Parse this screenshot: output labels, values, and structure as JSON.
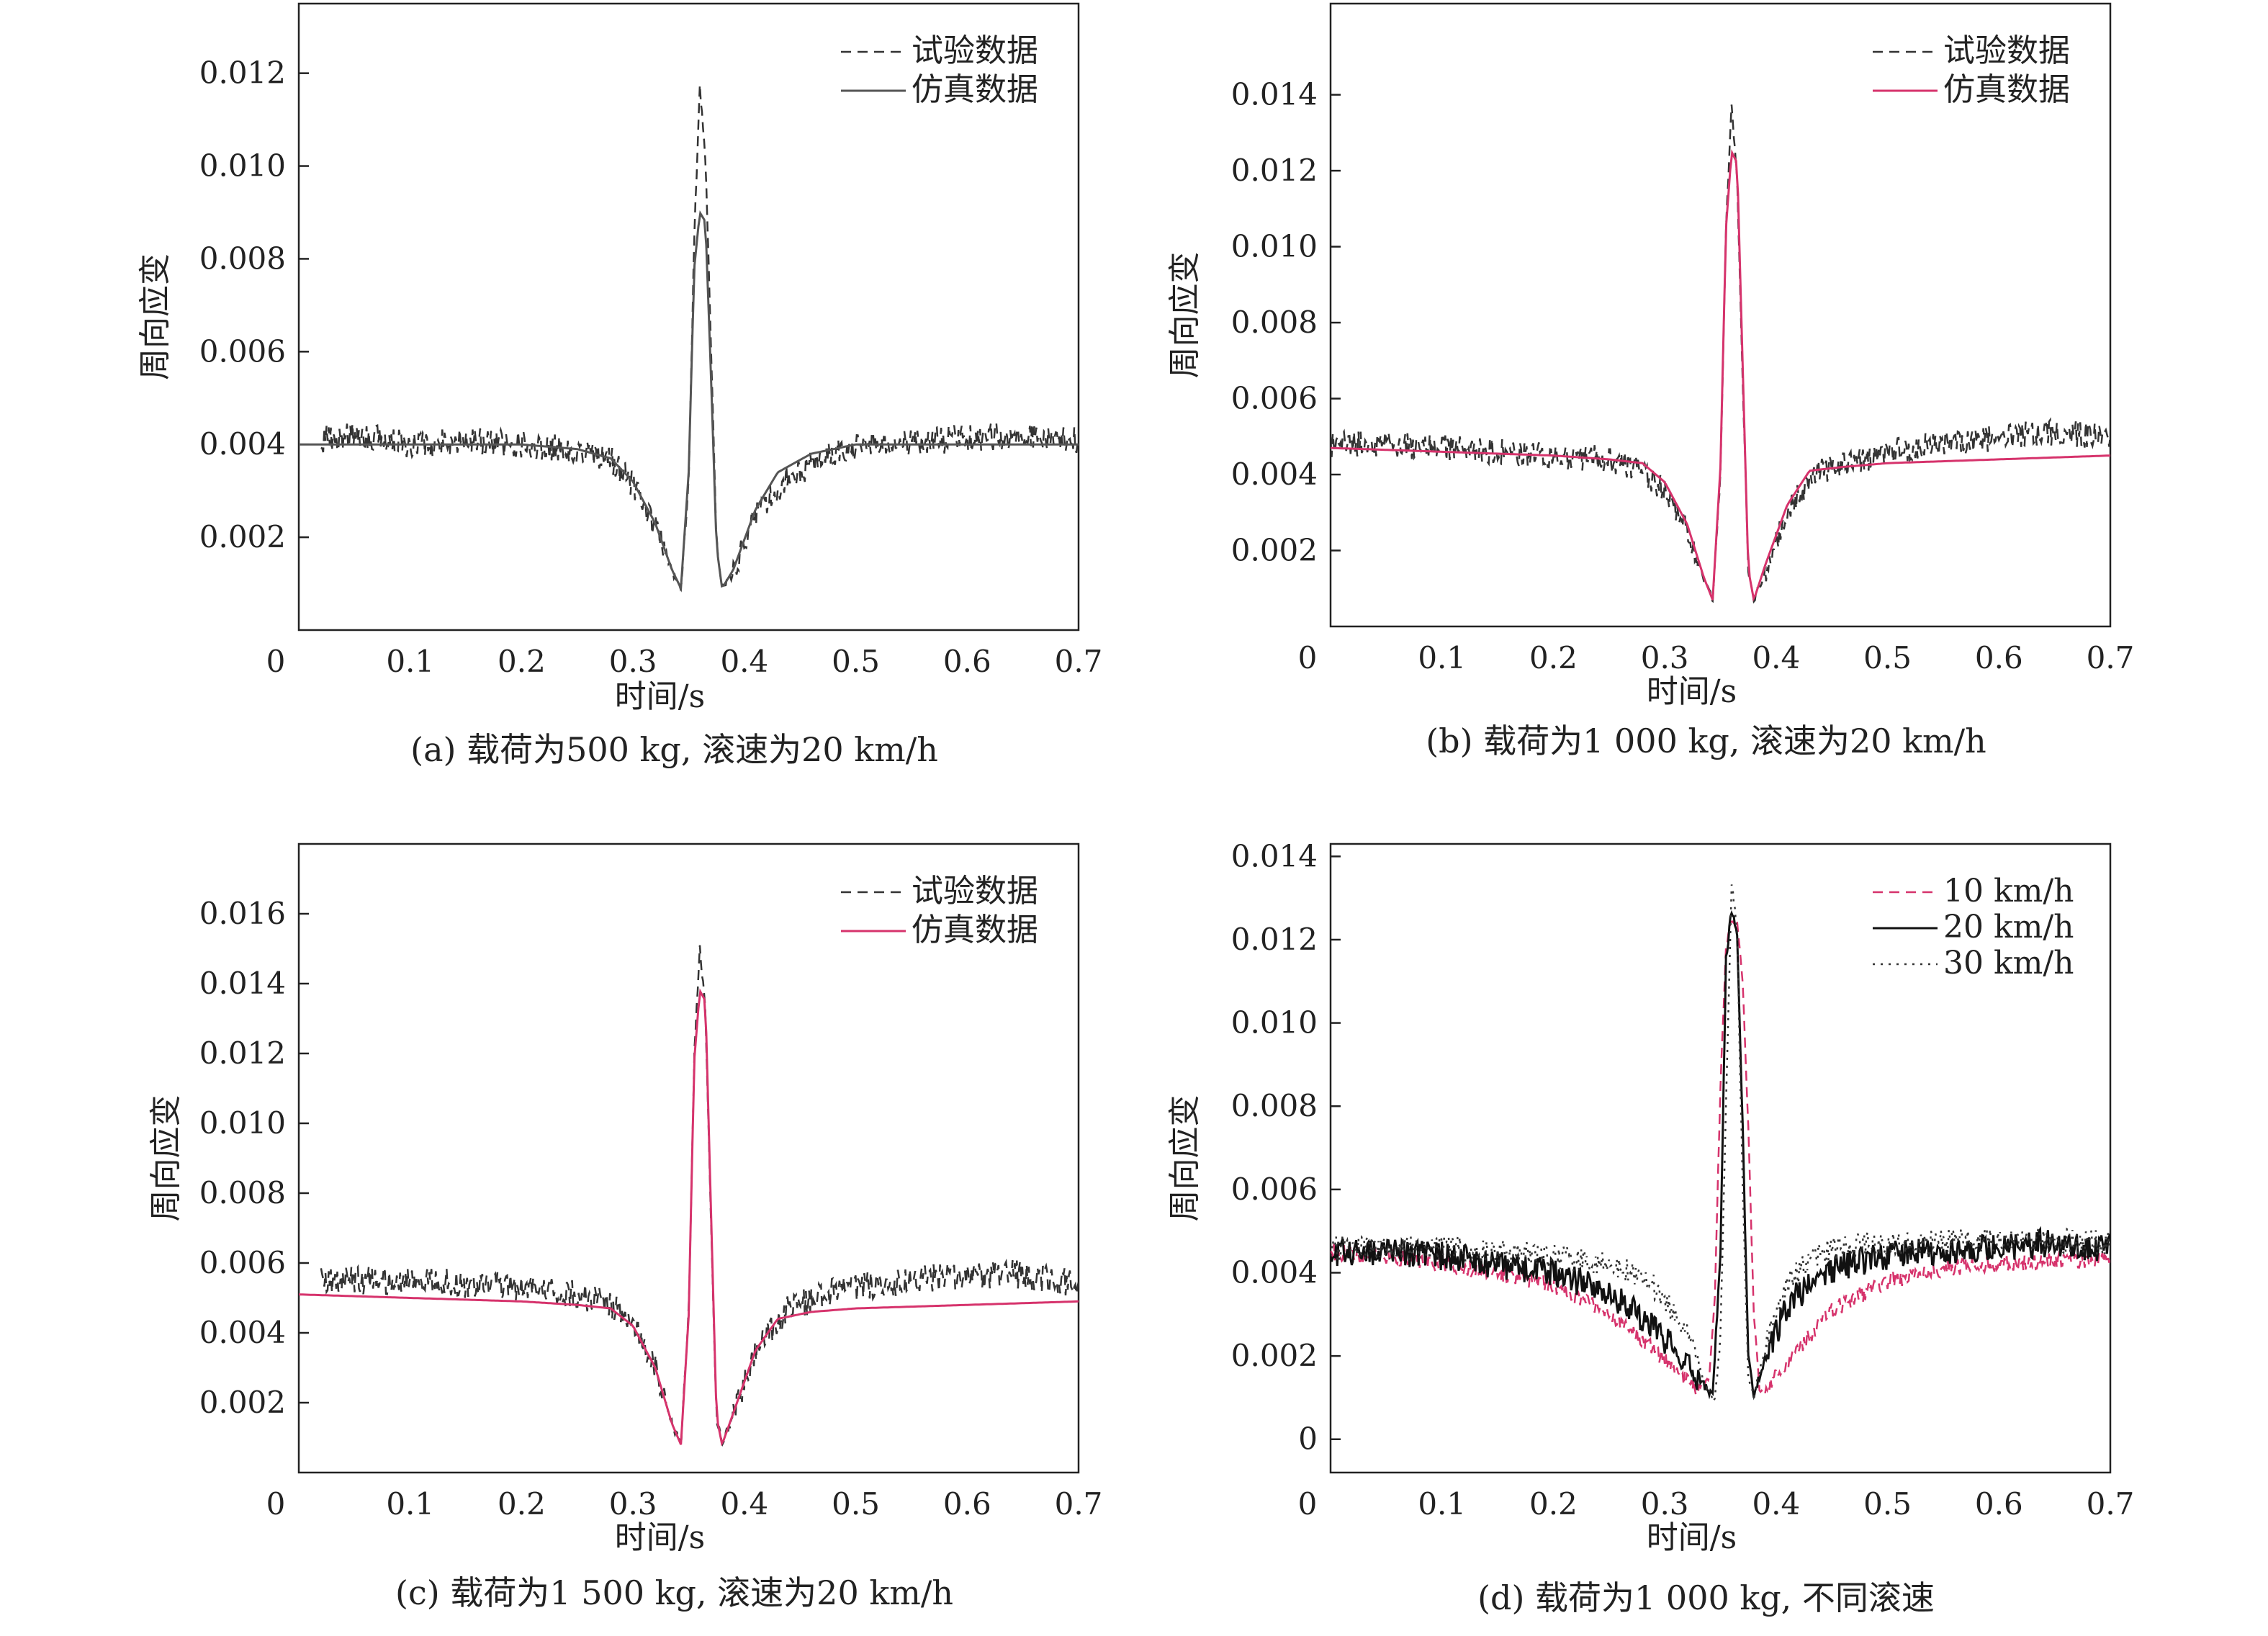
{
  "chart_data": [
    {
      "type": "line",
      "panel": "a",
      "caption": "(a) 载荷为500 kg, 滚速为20 km/h",
      "xlabel": "时间/s",
      "ylabel": "周向应变",
      "xlim": [
        0,
        0.7
      ],
      "ylim": [
        0,
        0.0135
      ],
      "x_ticks": [
        "0",
        "0.1",
        "0.2",
        "0.3",
        "0.4",
        "0.5",
        "0.6",
        "0.7"
      ],
      "y_ticks": [
        "0.002",
        "0.004",
        "0.006",
        "0.008",
        "0.010",
        "0.012"
      ],
      "y_tick_values": [
        0.002,
        0.004,
        0.006,
        0.008,
        0.01,
        0.012
      ],
      "legend_position": "top-right",
      "series": [
        {
          "name": "试验数据",
          "style": "dashed",
          "color": "#333333",
          "x": [
            0.02,
            0.05,
            0.1,
            0.15,
            0.2,
            0.25,
            0.28,
            0.3,
            0.32,
            0.335,
            0.343,
            0.35,
            0.355,
            0.36,
            0.365,
            0.37,
            0.375,
            0.38,
            0.39,
            0.41,
            0.44,
            0.48,
            0.52,
            0.58,
            0.64,
            0.7
          ],
          "y": [
            0.0041,
            0.0042,
            0.004,
            0.0041,
            0.004,
            0.0039,
            0.0037,
            0.0031,
            0.0022,
            0.0013,
            0.0009,
            0.0032,
            0.0085,
            0.0117,
            0.0102,
            0.0062,
            0.0019,
            0.0009,
            0.0012,
            0.0025,
            0.0033,
            0.0038,
            0.004,
            0.0041,
            0.0042,
            0.0041
          ],
          "noise": 0.0003
        },
        {
          "name": "仿真数据",
          "style": "solid",
          "color": "#555555",
          "x": [
            0.0,
            0.1,
            0.2,
            0.25,
            0.28,
            0.3,
            0.32,
            0.335,
            0.343,
            0.35,
            0.355,
            0.36,
            0.365,
            0.37,
            0.375,
            0.38,
            0.39,
            0.41,
            0.43,
            0.46,
            0.5,
            0.6,
            0.7
          ],
          "y": [
            0.004,
            0.004,
            0.004,
            0.0039,
            0.0037,
            0.0032,
            0.0023,
            0.0013,
            0.0009,
            0.0034,
            0.0078,
            0.009,
            0.0088,
            0.0055,
            0.0018,
            0.0009,
            0.0013,
            0.0026,
            0.0034,
            0.0038,
            0.004,
            0.004,
            0.004
          ]
        }
      ]
    },
    {
      "type": "line",
      "panel": "b",
      "caption": "(b) 载荷为1 000 kg, 滚速为20 km/h",
      "xlabel": "时间/s",
      "ylabel": "周向应变",
      "xlim": [
        0,
        0.7
      ],
      "ylim": [
        0,
        0.0164
      ],
      "x_ticks": [
        "0",
        "0.1",
        "0.2",
        "0.3",
        "0.4",
        "0.5",
        "0.6",
        "0.7"
      ],
      "y_ticks": [
        "0.002",
        "0.004",
        "0.006",
        "0.008",
        "0.010",
        "0.012",
        "0.014"
      ],
      "y_tick_values": [
        0.002,
        0.004,
        0.006,
        0.008,
        0.01,
        0.012,
        0.014
      ],
      "legend_position": "top-right",
      "series": [
        {
          "name": "试验数据",
          "style": "dashed",
          "color": "#333333",
          "x": [
            0.0,
            0.05,
            0.1,
            0.15,
            0.2,
            0.25,
            0.28,
            0.3,
            0.32,
            0.335,
            0.343,
            0.35,
            0.355,
            0.36,
            0.365,
            0.37,
            0.375,
            0.38,
            0.39,
            0.41,
            0.44,
            0.48,
            0.52,
            0.58,
            0.64,
            0.7
          ],
          "y": [
            0.0048,
            0.0048,
            0.0047,
            0.0046,
            0.0045,
            0.0044,
            0.0041,
            0.0036,
            0.0026,
            0.0013,
            0.0007,
            0.004,
            0.0105,
            0.0137,
            0.0118,
            0.0065,
            0.0015,
            0.0007,
            0.0014,
            0.0031,
            0.0041,
            0.0044,
            0.0047,
            0.0049,
            0.0051,
            0.005
          ],
          "noise": 0.00035
        },
        {
          "name": "仿真数据",
          "style": "solid",
          "color": "#d6336c",
          "x": [
            0.0,
            0.1,
            0.2,
            0.25,
            0.28,
            0.3,
            0.32,
            0.335,
            0.343,
            0.35,
            0.355,
            0.36,
            0.365,
            0.37,
            0.375,
            0.38,
            0.39,
            0.41,
            0.43,
            0.46,
            0.5,
            0.6,
            0.7
          ],
          "y": [
            0.0047,
            0.0046,
            0.0045,
            0.0044,
            0.0043,
            0.0038,
            0.0027,
            0.0013,
            0.0007,
            0.0042,
            0.0105,
            0.0125,
            0.0122,
            0.0068,
            0.0015,
            0.0007,
            0.0016,
            0.0032,
            0.0041,
            0.0042,
            0.0043,
            0.0044,
            0.0045
          ]
        }
      ]
    },
    {
      "type": "line",
      "panel": "c",
      "caption": "(c) 载荷为1 500 kg, 滚速为20 km/h",
      "xlabel": "时间/s",
      "ylabel": "周向应变",
      "xlim": [
        0,
        0.7
      ],
      "ylim": [
        0,
        0.018
      ],
      "x_ticks": [
        "0",
        "0.1",
        "0.2",
        "0.3",
        "0.4",
        "0.5",
        "0.6",
        "0.7"
      ],
      "y_ticks": [
        "0.002",
        "0.004",
        "0.006",
        "0.008",
        "0.010",
        "0.012",
        "0.014",
        "0.016"
      ],
      "y_tick_values": [
        0.002,
        0.004,
        0.006,
        0.008,
        0.01,
        0.012,
        0.014,
        0.016
      ],
      "legend_position": "top-right",
      "series": [
        {
          "name": "试验数据",
          "style": "dashed",
          "color": "#333333",
          "x": [
            0.02,
            0.05,
            0.1,
            0.15,
            0.2,
            0.25,
            0.28,
            0.3,
            0.32,
            0.335,
            0.343,
            0.35,
            0.355,
            0.36,
            0.365,
            0.37,
            0.375,
            0.38,
            0.39,
            0.41,
            0.44,
            0.48,
            0.52,
            0.58,
            0.64,
            0.7
          ],
          "y": [
            0.0055,
            0.0055,
            0.0055,
            0.0054,
            0.0053,
            0.0051,
            0.0048,
            0.0042,
            0.003,
            0.0014,
            0.0008,
            0.0045,
            0.012,
            0.015,
            0.0132,
            0.0072,
            0.0016,
            0.0008,
            0.0016,
            0.0035,
            0.0047,
            0.0052,
            0.0054,
            0.0056,
            0.0057,
            0.0054
          ],
          "noise": 0.0004
        },
        {
          "name": "仿真数据",
          "style": "solid",
          "color": "#d6336c",
          "x": [
            0.0,
            0.1,
            0.2,
            0.25,
            0.28,
            0.3,
            0.32,
            0.335,
            0.343,
            0.35,
            0.355,
            0.36,
            0.365,
            0.37,
            0.375,
            0.38,
            0.39,
            0.41,
            0.43,
            0.46,
            0.5,
            0.6,
            0.7
          ],
          "y": [
            0.0051,
            0.005,
            0.0049,
            0.0048,
            0.0047,
            0.0042,
            0.003,
            0.0014,
            0.0008,
            0.0045,
            0.0118,
            0.0138,
            0.0135,
            0.0075,
            0.0016,
            0.0008,
            0.0017,
            0.0035,
            0.0044,
            0.0046,
            0.0047,
            0.0048,
            0.0049
          ]
        }
      ]
    },
    {
      "type": "line",
      "panel": "d",
      "caption": "(d) 载荷为1 000 kg, 不同滚速",
      "xlabel": "时间/s",
      "ylabel": "周向应变",
      "xlim": [
        0,
        0.7
      ],
      "ylim": [
        -0.0008,
        0.0143
      ],
      "x_ticks": [
        "0",
        "0.1",
        "0.2",
        "0.3",
        "0.4",
        "0.5",
        "0.6",
        "0.7"
      ],
      "y_ticks": [
        "0",
        "0.002",
        "0.004",
        "0.006",
        "0.008",
        "0.010",
        "0.012",
        "0.014"
      ],
      "y_tick_values": [
        0,
        0.002,
        0.004,
        0.006,
        0.008,
        0.01,
        0.012,
        0.014
      ],
      "legend_position": "top-right",
      "series": [
        {
          "name": "10 km/h",
          "style": "dashed",
          "color": "#d6336c",
          "x": [
            0.0,
            0.05,
            0.1,
            0.15,
            0.2,
            0.25,
            0.28,
            0.3,
            0.32,
            0.33,
            0.34,
            0.345,
            0.35,
            0.355,
            0.36,
            0.365,
            0.37,
            0.375,
            0.38,
            0.385,
            0.39,
            0.4,
            0.42,
            0.45,
            0.5,
            0.55,
            0.6,
            0.65,
            0.7
          ],
          "y": [
            0.0045,
            0.0044,
            0.0042,
            0.004,
            0.0037,
            0.003,
            0.0024,
            0.0019,
            0.0014,
            0.0012,
            0.0015,
            0.0035,
            0.0085,
            0.0118,
            0.0125,
            0.0124,
            0.011,
            0.0075,
            0.003,
            0.0012,
            0.0011,
            0.0015,
            0.0022,
            0.0031,
            0.0038,
            0.0041,
            0.0042,
            0.0043,
            0.0043
          ],
          "noise": 0.0002
        },
        {
          "name": "20 km/h",
          "style": "solid",
          "color": "#111111",
          "x": [
            0.0,
            0.05,
            0.1,
            0.15,
            0.2,
            0.25,
            0.28,
            0.3,
            0.32,
            0.335,
            0.343,
            0.35,
            0.355,
            0.36,
            0.365,
            0.37,
            0.375,
            0.38,
            0.39,
            0.41,
            0.44,
            0.48,
            0.52,
            0.58,
            0.64,
            0.7
          ],
          "y": [
            0.0045,
            0.0045,
            0.0044,
            0.0042,
            0.004,
            0.0035,
            0.0029,
            0.0024,
            0.0018,
            0.0013,
            0.0011,
            0.0045,
            0.0115,
            0.0127,
            0.0122,
            0.0075,
            0.002,
            0.0011,
            0.0019,
            0.0032,
            0.004,
            0.0043,
            0.0045,
            0.0046,
            0.0047,
            0.0046
          ],
          "noise": 0.00035
        },
        {
          "name": "30 km/h",
          "style": "dotted",
          "color": "#333333",
          "x": [
            0.0,
            0.05,
            0.1,
            0.15,
            0.2,
            0.25,
            0.28,
            0.3,
            0.32,
            0.335,
            0.345,
            0.35,
            0.355,
            0.36,
            0.365,
            0.37,
            0.375,
            0.38,
            0.39,
            0.41,
            0.44,
            0.48,
            0.52,
            0.58,
            0.64,
            0.7
          ],
          "y": [
            0.0046,
            0.0046,
            0.0046,
            0.0045,
            0.0044,
            0.0042,
            0.0039,
            0.0034,
            0.0025,
            0.0014,
            0.0009,
            0.0025,
            0.008,
            0.0134,
            0.0122,
            0.006,
            0.0015,
            0.001,
            0.0022,
            0.0038,
            0.0045,
            0.0047,
            0.0047,
            0.0048,
            0.0048,
            0.0047
          ],
          "noise": 0.0003
        }
      ]
    }
  ]
}
